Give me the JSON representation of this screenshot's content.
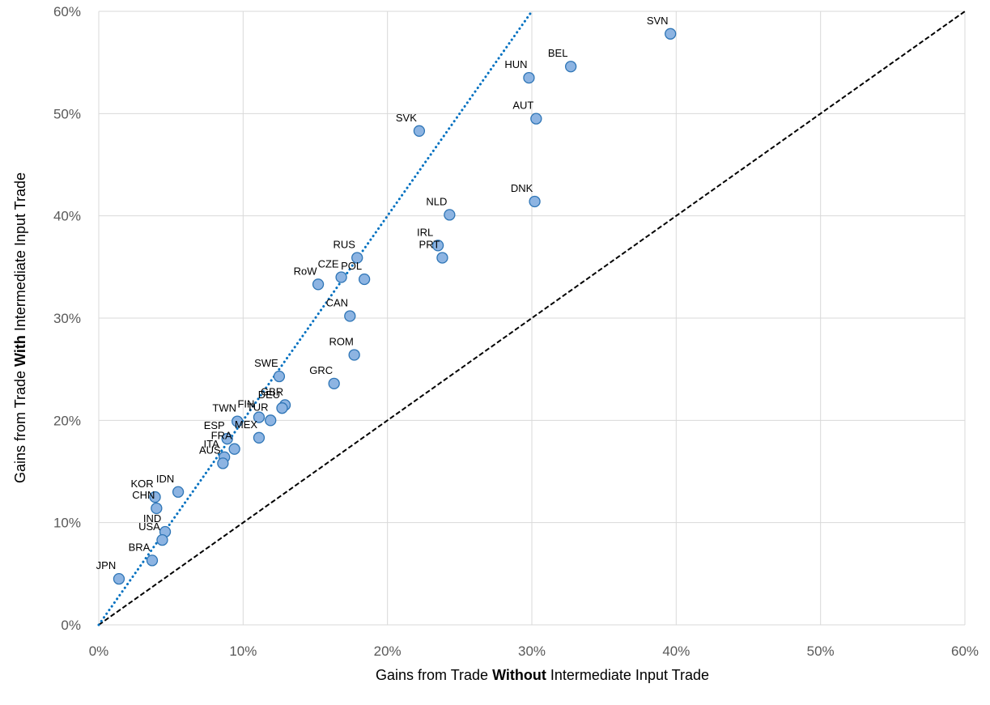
{
  "chart_data": {
    "type": "scatter",
    "xlabel": {
      "before": "Gains from Trade ",
      "bold": "Without",
      "after": " Intermediate Input Trade"
    },
    "ylabel": {
      "before": "Gains from Trade ",
      "bold": "With",
      "after": " Intermediate Input Trade"
    },
    "xlim": [
      0,
      60
    ],
    "ylim": [
      0,
      60
    ],
    "x_ticks": [
      0,
      10,
      20,
      30,
      40,
      50,
      60
    ],
    "y_ticks": [
      0,
      10,
      20,
      30,
      40,
      50,
      60
    ],
    "x_tick_labels": [
      "0%",
      "10%",
      "20%",
      "30%",
      "40%",
      "50%",
      "60%"
    ],
    "y_tick_labels": [
      "0%",
      "10%",
      "20%",
      "30%",
      "40%",
      "50%",
      "60%"
    ],
    "grid": true,
    "marker_color": "#8db4e2",
    "marker_edge_color": "#2e75b6",
    "points": [
      {
        "label": "SVN",
        "x": 39.6,
        "y": 57.8
      },
      {
        "label": "BEL",
        "x": 32.7,
        "y": 54.6
      },
      {
        "label": "HUN",
        "x": 29.8,
        "y": 53.5
      },
      {
        "label": "AUT",
        "x": 30.3,
        "y": 49.5
      },
      {
        "label": "SVK",
        "x": 22.2,
        "y": 48.3
      },
      {
        "label": "DNK",
        "x": 30.2,
        "y": 41.4
      },
      {
        "label": "NLD",
        "x": 24.3,
        "y": 40.1
      },
      {
        "label": "IRL",
        "x": 23.5,
        "y": 37.1
      },
      {
        "label": "PRT",
        "x": 23.8,
        "y": 35.9
      },
      {
        "label": "RUS",
        "x": 17.9,
        "y": 35.9
      },
      {
        "label": "CZE",
        "x": 16.8,
        "y": 34.0
      },
      {
        "label": "POL",
        "x": 18.4,
        "y": 33.8
      },
      {
        "label": "RoW",
        "x": 15.2,
        "y": 33.3
      },
      {
        "label": "CAN",
        "x": 17.4,
        "y": 30.2
      },
      {
        "label": "ROM",
        "x": 17.7,
        "y": 26.4
      },
      {
        "label": "SWE",
        "x": 12.5,
        "y": 24.3
      },
      {
        "label": "GRC",
        "x": 16.3,
        "y": 23.6
      },
      {
        "label": "GBR",
        "x": 12.9,
        "y": 21.5
      },
      {
        "label": "DEU",
        "x": 12.7,
        "y": 21.2
      },
      {
        "label": "FIN",
        "x": 11.1,
        "y": 20.3
      },
      {
        "label": "TUR",
        "x": 11.9,
        "y": 20.0
      },
      {
        "label": "TWN",
        "x": 9.6,
        "y": 19.9
      },
      {
        "label": "MEX",
        "x": 11.1,
        "y": 18.3
      },
      {
        "label": "ESP",
        "x": 8.9,
        "y": 18.2
      },
      {
        "label": "FRA",
        "x": 9.4,
        "y": 17.2
      },
      {
        "label": "ITA",
        "x": 8.7,
        "y": 16.4
      },
      {
        "label": "AUS",
        "x": 8.6,
        "y": 15.8
      },
      {
        "label": "IDN",
        "x": 5.5,
        "y": 13.0
      },
      {
        "label": "KOR",
        "x": 3.9,
        "y": 12.5
      },
      {
        "label": "CHN",
        "x": 4.0,
        "y": 11.4
      },
      {
        "label": "IND",
        "x": 4.6,
        "y": 9.1
      },
      {
        "label": "USA",
        "x": 4.4,
        "y": 8.3
      },
      {
        "label": "BRA",
        "x": 3.7,
        "y": 6.3
      },
      {
        "label": "JPN",
        "x": 1.4,
        "y": 4.5
      }
    ],
    "lines": [
      {
        "type": "45-degree",
        "style": "dashed",
        "color": "#000000",
        "from": [
          0,
          0
        ],
        "to": [
          60,
          60
        ]
      },
      {
        "type": "fit",
        "style": "dotted",
        "color": "#0070c0",
        "from": [
          0,
          0
        ],
        "to": [
          30,
          60
        ]
      }
    ]
  }
}
